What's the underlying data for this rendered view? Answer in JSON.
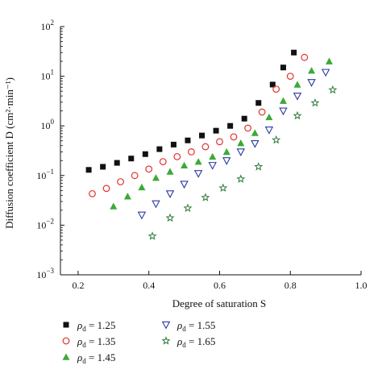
{
  "chart_data": {
    "type": "scatter",
    "xlabel": "Degree of saturation S",
    "ylabel": "Diffusion coefficient D (cm²·min⁻¹)",
    "xlim": [
      0.15,
      1.0
    ],
    "ylim": [
      0.001,
      100
    ],
    "y_scale": "log",
    "x_ticks": [
      "0.2",
      "0.4",
      "0.6",
      "0.8",
      "1.0"
    ],
    "x_tick_values": [
      0.2,
      0.4,
      0.6,
      0.8,
      1.0
    ],
    "y_tick_exponents": [
      -3,
      -2,
      -1,
      0,
      1,
      2
    ],
    "grid": false,
    "legend_position": "below",
    "series": [
      {
        "name": "ρd = 1.25",
        "label_symbol": "ρ",
        "label_sub": "d",
        "label_rest": " = 1.25",
        "marker": "square-filled",
        "color": "#111111",
        "x": [
          0.23,
          0.27,
          0.31,
          0.35,
          0.39,
          0.43,
          0.47,
          0.51,
          0.55,
          0.59,
          0.63,
          0.67,
          0.71,
          0.75,
          0.78,
          0.81
        ],
        "y": [
          0.13,
          0.15,
          0.18,
          0.22,
          0.27,
          0.34,
          0.42,
          0.51,
          0.64,
          0.8,
          1.0,
          1.4,
          2.9,
          6.8,
          15,
          30
        ]
      },
      {
        "name": "ρd = 1.35",
        "label_symbol": "ρ",
        "label_sub": "d",
        "label_rest": " = 1.35",
        "marker": "circle-open",
        "color": "#e2332a",
        "x": [
          0.24,
          0.28,
          0.32,
          0.36,
          0.4,
          0.44,
          0.48,
          0.52,
          0.56,
          0.6,
          0.64,
          0.68,
          0.72,
          0.76,
          0.8,
          0.84
        ],
        "y": [
          0.043,
          0.055,
          0.075,
          0.1,
          0.135,
          0.19,
          0.24,
          0.3,
          0.38,
          0.48,
          0.6,
          0.9,
          1.9,
          5.5,
          10,
          24
        ]
      },
      {
        "name": "ρd = 1.45",
        "label_symbol": "ρ",
        "label_sub": "d",
        "label_rest": " = 1.45",
        "marker": "triangle-filled",
        "color": "#3aaa35",
        "x": [
          0.3,
          0.34,
          0.38,
          0.42,
          0.46,
          0.5,
          0.54,
          0.58,
          0.62,
          0.66,
          0.7,
          0.74,
          0.78,
          0.82,
          0.86,
          0.91
        ],
        "y": [
          0.024,
          0.038,
          0.058,
          0.09,
          0.12,
          0.16,
          0.19,
          0.24,
          0.3,
          0.45,
          0.72,
          1.5,
          3.2,
          6.8,
          13,
          20
        ]
      },
      {
        "name": "ρd = 1.55",
        "label_symbol": "ρ",
        "label_sub": "d",
        "label_rest": " = 1.55",
        "marker": "triangle-down-open",
        "color": "#2d3a9e",
        "x": [
          0.38,
          0.42,
          0.46,
          0.5,
          0.54,
          0.58,
          0.62,
          0.66,
          0.7,
          0.74,
          0.78,
          0.82,
          0.86,
          0.9
        ],
        "y": [
          0.016,
          0.027,
          0.043,
          0.067,
          0.11,
          0.16,
          0.2,
          0.3,
          0.44,
          0.83,
          2.0,
          4.0,
          7.5,
          12
        ]
      },
      {
        "name": "ρd = 1.65",
        "label_symbol": "ρ",
        "label_sub": "d",
        "label_rest": " = 1.65",
        "marker": "star-open",
        "color": "#2e7a3a",
        "x": [
          0.41,
          0.46,
          0.51,
          0.56,
          0.61,
          0.66,
          0.71,
          0.76,
          0.82,
          0.87,
          0.92
        ],
        "y": [
          0.006,
          0.014,
          0.022,
          0.036,
          0.056,
          0.085,
          0.15,
          0.52,
          1.6,
          2.9,
          5.3
        ]
      }
    ]
  }
}
